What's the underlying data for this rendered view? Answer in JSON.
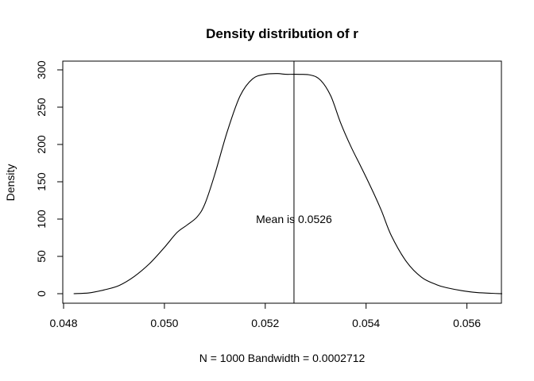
{
  "chart_data": {
    "type": "line",
    "title": "Density distribution of r",
    "xlabel": "N = 1000   Bandwidth = 0.0002712",
    "ylabel": "Density",
    "xlim": [
      0.048,
      0.0567
    ],
    "ylim": [
      0,
      300
    ],
    "x_ticks": [
      0.048,
      0.05,
      0.052,
      0.054,
      0.056
    ],
    "x_tick_labels": [
      "0.048",
      "0.050",
      "0.052",
      "0.054",
      "0.056"
    ],
    "y_ticks": [
      0,
      50,
      100,
      150,
      200,
      250,
      300
    ],
    "y_tick_labels": [
      "0",
      "50",
      "100",
      "150",
      "200",
      "250",
      "300"
    ],
    "grid": false,
    "series": [
      {
        "x": [
          0.0482,
          0.0485,
          0.0488,
          0.0491,
          0.0494,
          0.0497,
          0.05,
          0.05025,
          0.05045,
          0.05065,
          0.0508,
          0.051,
          0.05125,
          0.0515,
          0.05175,
          0.052,
          0.05225,
          0.0524,
          0.0526,
          0.0529,
          0.0531,
          0.0533,
          0.0535,
          0.0537,
          0.0539,
          0.0541,
          0.0543,
          0.0545,
          0.0548,
          0.0551,
          0.0554,
          0.0556,
          0.0559,
          0.0562,
          0.0565,
          0.0567
        ],
        "y": [
          0,
          1,
          5,
          11,
          23,
          40,
          62,
          82,
          92,
          103,
          120,
          160,
          218,
          265,
          288,
          294,
          295,
          294,
          294,
          293,
          286,
          265,
          228,
          197,
          170,
          142,
          112,
          78,
          43,
          22,
          12,
          8,
          4,
          1.5,
          0.5,
          0
        ]
      }
    ],
    "vline": {
      "x": 0.05257
    },
    "annotation": {
      "text": "Mean is  0.0526",
      "x": 0.05257,
      "y": 100
    }
  }
}
